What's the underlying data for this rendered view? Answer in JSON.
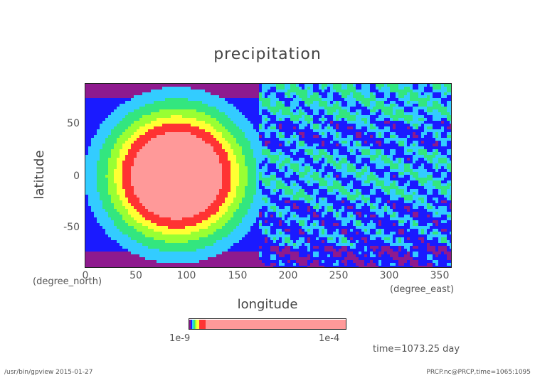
{
  "chart_data": {
    "type": "heatmap",
    "title": "precipitation",
    "xlabel": "longitude",
    "ylabel": "latitude",
    "x_unit": "(degree_east)",
    "y_unit": "(degree_north)",
    "xlim": [
      0,
      360
    ],
    "ylim": [
      -90,
      90
    ],
    "x_ticks": [
      "0",
      "50",
      "100",
      "150",
      "200",
      "250",
      "300",
      "350"
    ],
    "y_ticks": [
      "50",
      "0",
      "-50"
    ],
    "features": {
      "dry_region_lon": [
        170,
        360
      ],
      "wet_center": {
        "lon": 90,
        "lat": 0
      },
      "wet_core_radius_deg": 45
    },
    "colorbar": {
      "left_label": "1e-9",
      "right_label": "1e-4",
      "colors": [
        "#8e1a8e",
        "#1a1aff",
        "#33ccff",
        "#33e67f",
        "#99ff33",
        "#ffff33",
        "#ff3333",
        "#ff9999"
      ]
    },
    "annotation": "time=1073.25 day"
  },
  "footer": {
    "left": "/usr/bin/gpview  2015-01-27",
    "right": "PRCP.nc@PRCP,time=1065:1095"
  }
}
